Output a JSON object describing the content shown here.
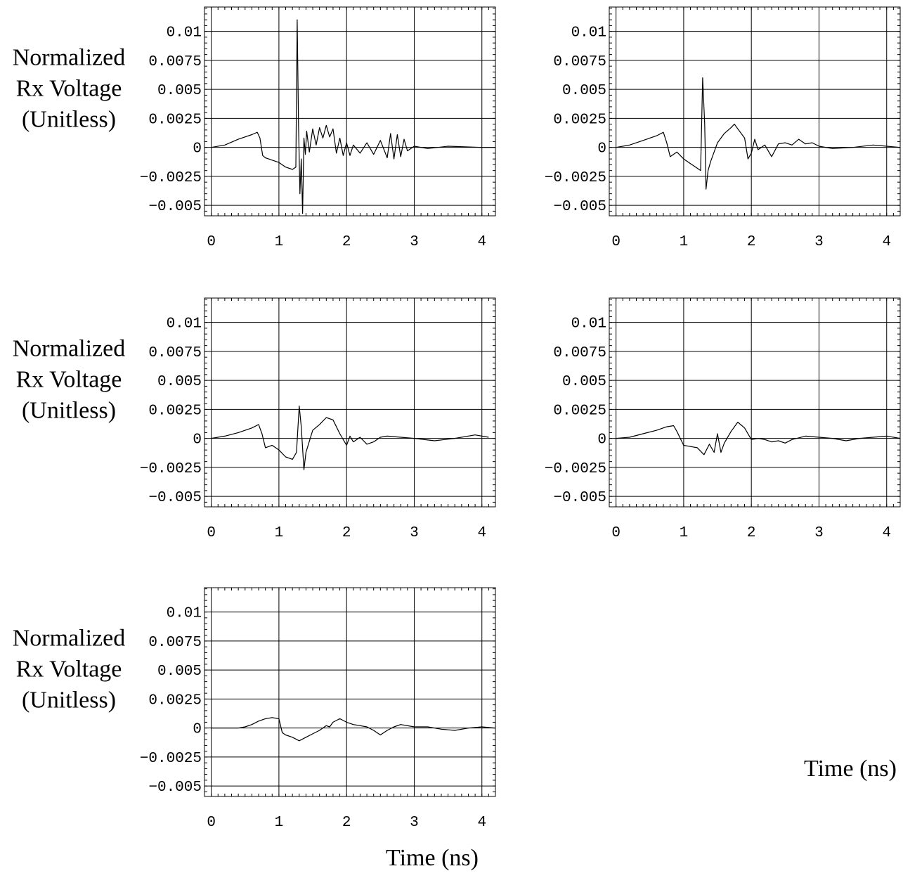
{
  "chart_data": [
    {
      "type": "line",
      "ylabel": [
        "Normalized",
        "Rx Voltage",
        "(Unitless)"
      ],
      "xlabel": "",
      "xlim": [
        -0.1,
        4.2
      ],
      "ylim": [
        -0.0059,
        0.0121
      ],
      "x_ticks": [
        "0",
        "1",
        "2",
        "3",
        "4"
      ],
      "y_ticks": [
        "0.01",
        "0.0075",
        "0.005",
        "0.0025",
        "0",
        "−0.0025",
        "−0.005"
      ],
      "grid": true,
      "series": [
        {
          "x": [
            0,
            0.2,
            0.4,
            0.6,
            0.68,
            0.72,
            0.76,
            0.8,
            0.9,
            1.0,
            1.1,
            1.2,
            1.25,
            1.27,
            1.29,
            1.31,
            1.33,
            1.35,
            1.37,
            1.39,
            1.41,
            1.45,
            1.5,
            1.55,
            1.6,
            1.65,
            1.7,
            1.75,
            1.8,
            1.85,
            1.9,
            1.95,
            2.0,
            2.05,
            2.1,
            2.2,
            2.3,
            2.4,
            2.5,
            2.6,
            2.65,
            2.7,
            2.75,
            2.8,
            2.85,
            2.9,
            3.0,
            3.2,
            3.5,
            4.0,
            4.2
          ],
          "y": [
            0,
            0.0002,
            0.0007,
            0.0011,
            0.0013,
            0.0008,
            -0.0007,
            -0.0009,
            -0.0011,
            -0.0013,
            -0.0017,
            -0.0019,
            -0.0017,
            0.011,
            0.002,
            -0.004,
            -0.001,
            -0.0057,
            0.0008,
            -0.0006,
            0.0014,
            -0.0004,
            0.0016,
            0.0002,
            0.0017,
            0.0008,
            0.0019,
            0.0009,
            0.0016,
            -0.0005,
            0.0008,
            -0.0007,
            0.0004,
            -0.0007,
            0.0002,
            -0.0005,
            0.0004,
            -0.0006,
            0.0006,
            -0.0009,
            0.0012,
            -0.001,
            0.0011,
            -0.0008,
            0.0007,
            -0.0003,
            0.0001,
            -0.0001,
            0.0001,
            0,
            0
          ]
        }
      ]
    },
    {
      "type": "line",
      "ylabel": [],
      "xlabel": "",
      "xlim": [
        -0.1,
        4.2
      ],
      "ylim": [
        -0.0059,
        0.0121
      ],
      "x_ticks": [
        "0",
        "1",
        "2",
        "3",
        "4"
      ],
      "y_ticks": [
        "0.01",
        "0.0075",
        "0.005",
        "0.0025",
        "0",
        "−0.0025",
        "−0.005"
      ],
      "grid": true,
      "series": [
        {
          "x": [
            0,
            0.2,
            0.4,
            0.6,
            0.7,
            0.75,
            0.8,
            0.9,
            1.0,
            1.1,
            1.2,
            1.25,
            1.28,
            1.31,
            1.33,
            1.36,
            1.4,
            1.5,
            1.6,
            1.7,
            1.75,
            1.8,
            1.9,
            1.95,
            2.0,
            2.05,
            2.1,
            2.2,
            2.3,
            2.4,
            2.5,
            2.6,
            2.7,
            2.8,
            2.9,
            3.0,
            3.2,
            3.5,
            3.8,
            4.0,
            4.2
          ],
          "y": [
            0,
            0.0002,
            0.0006,
            0.001,
            0.0013,
            0.0004,
            -0.0008,
            -0.0004,
            -0.001,
            -0.0014,
            -0.0018,
            -0.002,
            0.006,
            0.002,
            -0.0036,
            -0.002,
            -0.0012,
            0.0004,
            0.0012,
            0.0017,
            0.002,
            0.0016,
            0.0008,
            -0.001,
            -0.0005,
            0.0007,
            -0.0002,
            0.0002,
            -0.0008,
            0.0003,
            0.0004,
            0.0002,
            0.0007,
            0.0003,
            0.0004,
            0.0001,
            -0.0001,
            0,
            0.0002,
            0.0001,
            0
          ]
        }
      ]
    },
    {
      "type": "line",
      "ylabel": [
        "Normalized",
        "Rx Voltage",
        "(Unitless)"
      ],
      "xlabel": "",
      "xlim": [
        -0.1,
        4.2
      ],
      "ylim": [
        -0.0059,
        0.0121
      ],
      "x_ticks": [
        "0",
        "1",
        "2",
        "3",
        "4"
      ],
      "y_ticks": [
        "0.01",
        "0.0075",
        "0.005",
        "0.0025",
        "0",
        "−0.0025",
        "−0.005"
      ],
      "grid": true,
      "series": [
        {
          "x": [
            0,
            0.2,
            0.4,
            0.6,
            0.7,
            0.75,
            0.8,
            0.9,
            1.0,
            1.1,
            1.2,
            1.26,
            1.3,
            1.33,
            1.37,
            1.4,
            1.5,
            1.6,
            1.7,
            1.8,
            1.9,
            2.0,
            2.05,
            2.1,
            2.2,
            2.3,
            2.4,
            2.5,
            2.6,
            2.8,
            3.0,
            3.3,
            3.6,
            3.9,
            4.1
          ],
          "y": [
            0,
            0.0002,
            0.0005,
            0.0009,
            0.0012,
            0.0004,
            -0.0008,
            -0.0006,
            -0.001,
            -0.0016,
            -0.0018,
            -0.0012,
            0.0028,
            0.001,
            -0.0027,
            -0.0012,
            0.0007,
            0.0012,
            0.0018,
            0.0016,
            0.0004,
            -0.0006,
            0.0002,
            -0.0003,
            0.0001,
            -0.0005,
            -0.0003,
            0.0001,
            0.0002,
            0.0001,
            0,
            -0.0002,
            0,
            0.0003,
            0.0001
          ]
        }
      ]
    },
    {
      "type": "line",
      "ylabel": [],
      "xlabel": "Time (ns)",
      "xlim": [
        -0.1,
        4.2
      ],
      "ylim": [
        -0.0059,
        0.0121
      ],
      "x_ticks": [
        "0",
        "1",
        "2",
        "3",
        "4"
      ],
      "y_ticks": [
        "0.01",
        "0.0075",
        "0.005",
        "0.0025",
        "0",
        "−0.0025",
        "−0.005"
      ],
      "grid": true,
      "series": [
        {
          "x": [
            0,
            0.2,
            0.4,
            0.6,
            0.75,
            0.85,
            0.9,
            1.0,
            1.1,
            1.2,
            1.3,
            1.38,
            1.45,
            1.5,
            1.55,
            1.6,
            1.7,
            1.8,
            1.9,
            2.0,
            2.1,
            2.2,
            2.3,
            2.4,
            2.5,
            2.6,
            2.8,
            3.0,
            3.2,
            3.4,
            3.6,
            3.8,
            4.0,
            4.2
          ],
          "y": [
            0,
            0.0001,
            0.0004,
            0.0007,
            0.001,
            0.0011,
            0.0006,
            -0.0006,
            -0.0007,
            -0.0008,
            -0.0014,
            -0.0005,
            -0.0012,
            0.0004,
            -0.0012,
            -0.0004,
            0.0006,
            0.0014,
            0.0009,
            -0.0001,
            0,
            -0.0001,
            -0.0003,
            -0.0002,
            -0.0004,
            -0.0001,
            0.0002,
            0.0001,
            0,
            -0.0002,
            0,
            0.0001,
            0.0002,
            0
          ]
        }
      ]
    },
    {
      "type": "line",
      "ylabel": [
        "Normalized",
        "Rx Voltage",
        "(Unitless)"
      ],
      "xlabel": "Time (ns)",
      "xlim": [
        -0.1,
        4.2
      ],
      "ylim": [
        -0.0059,
        0.0121
      ],
      "x_ticks": [
        "0",
        "1",
        "2",
        "3",
        "4"
      ],
      "y_ticks": [
        "0.01",
        "0.0075",
        "0.005",
        "0.0025",
        "0",
        "−0.0025",
        "−0.005"
      ],
      "grid": true,
      "series": [
        {
          "x": [
            0,
            0.2,
            0.4,
            0.5,
            0.6,
            0.7,
            0.8,
            0.9,
            1.0,
            1.05,
            1.1,
            1.2,
            1.3,
            1.4,
            1.5,
            1.6,
            1.7,
            1.75,
            1.8,
            1.9,
            2.0,
            2.1,
            2.2,
            2.3,
            2.4,
            2.5,
            2.6,
            2.7,
            2.8,
            3.0,
            3.2,
            3.4,
            3.6,
            3.8,
            4.0,
            4.2
          ],
          "y": [
            0,
            0,
            0,
            0.0001,
            0.0003,
            0.0006,
            0.0008,
            0.0009,
            0.0008,
            -0.0004,
            -0.0006,
            -0.0008,
            -0.0011,
            -0.0008,
            -0.0005,
            -0.0002,
            0.0002,
            0.0001,
            0.0005,
            0.0008,
            0.0005,
            0.0003,
            0.0002,
            0.0001,
            -0.0002,
            -0.0006,
            -0.0002,
            0.0001,
            0.0003,
            0.0001,
            0.0001,
            -0.0001,
            -0.0002,
            0,
            0.0001,
            0
          ]
        }
      ]
    }
  ]
}
